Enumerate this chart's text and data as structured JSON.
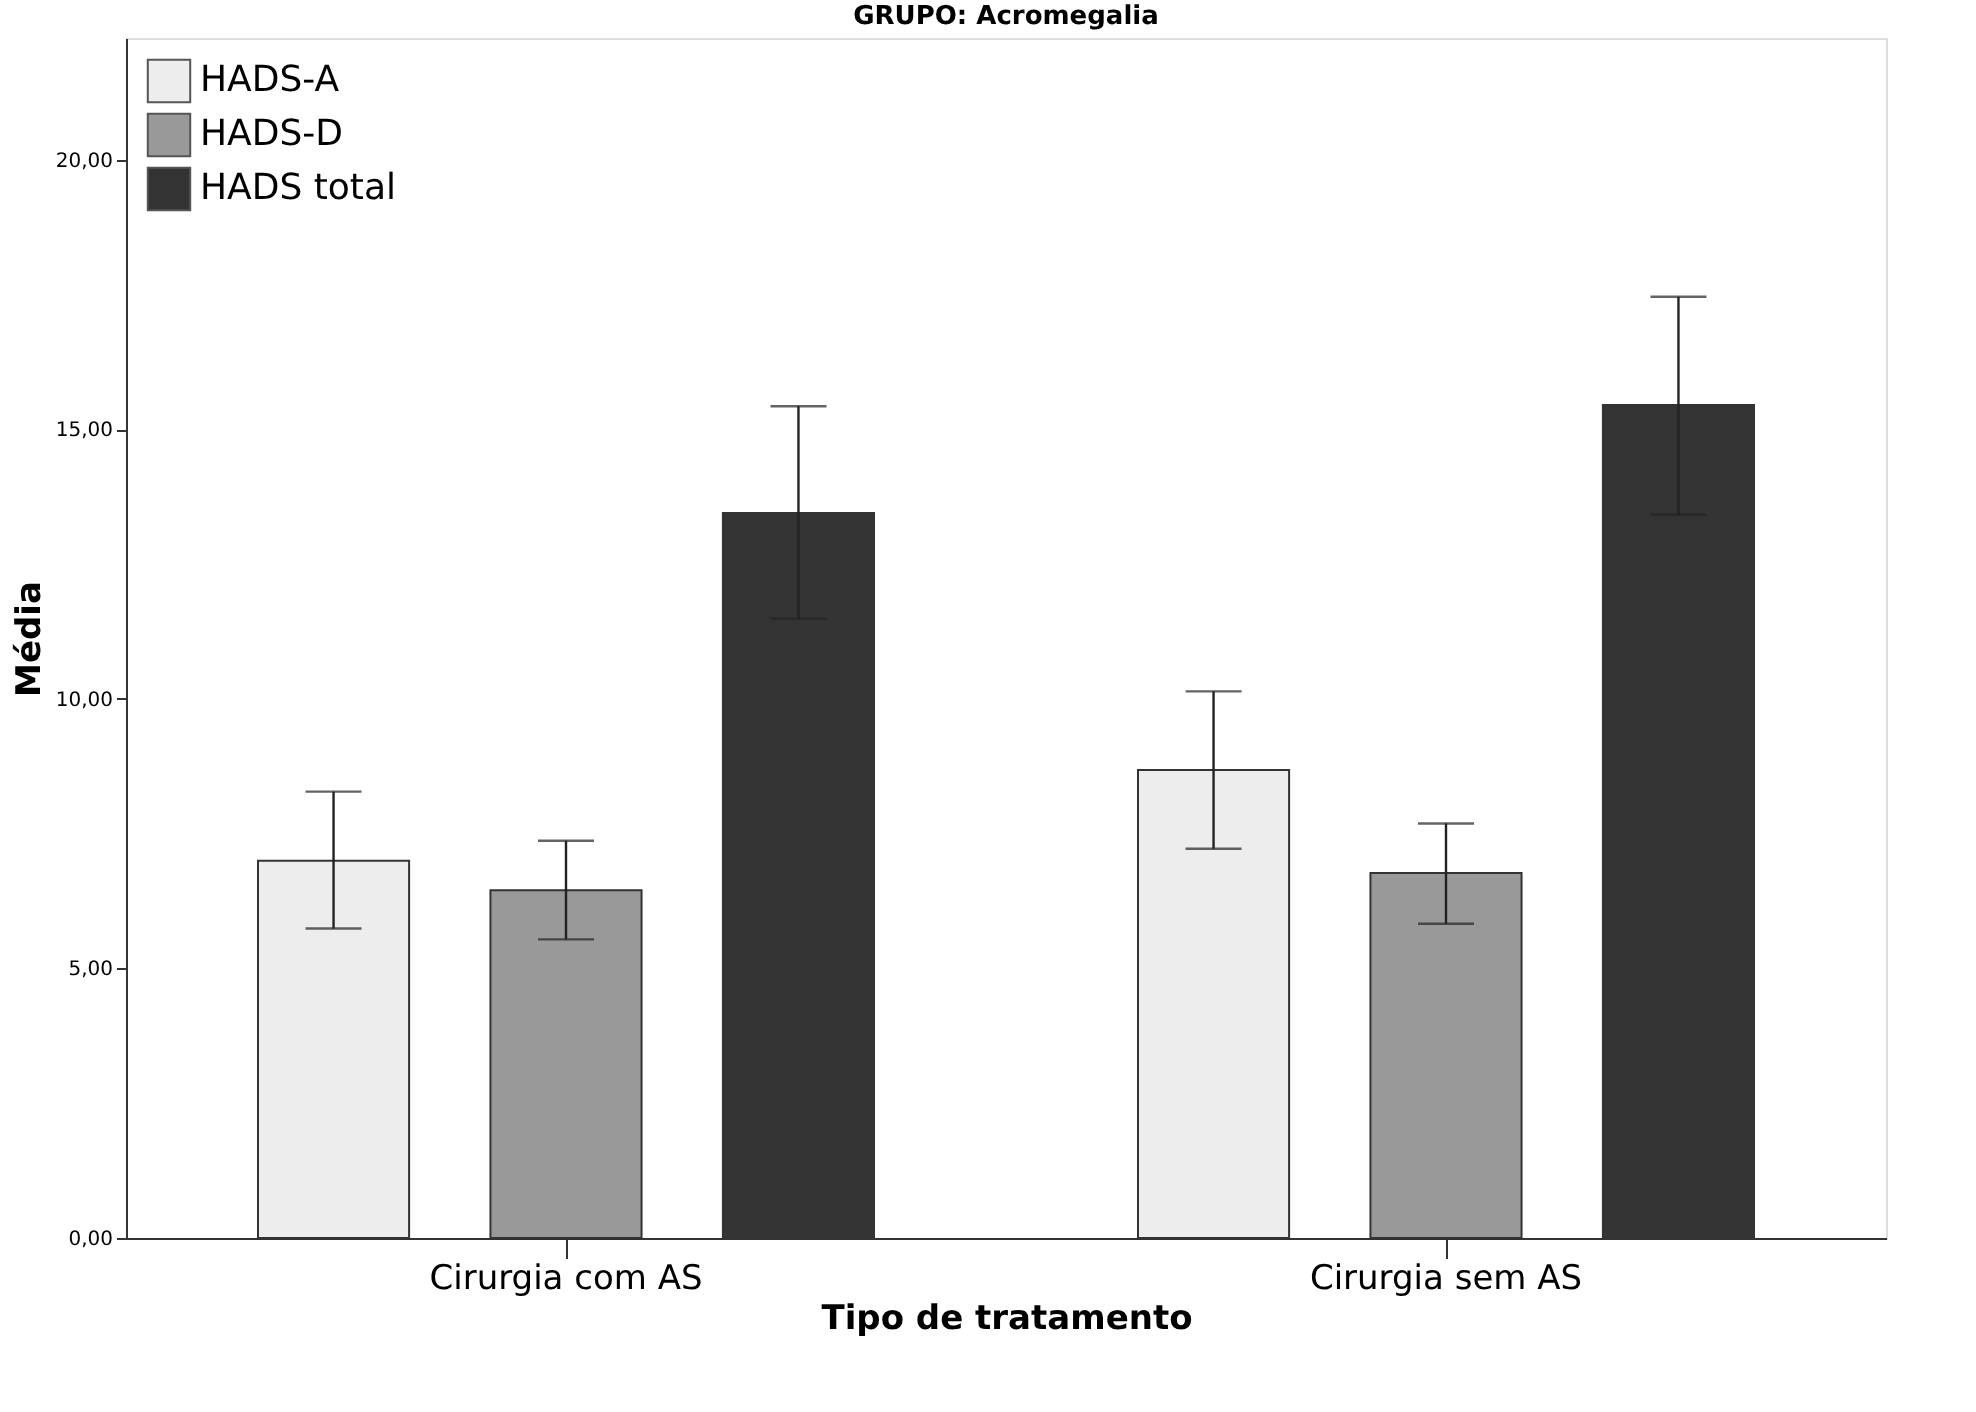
{
  "chart_data": {
    "type": "bar",
    "title": "GRUPO: Acromegalia",
    "xlabel": "Tipo de tratamento",
    "ylabel": "Média",
    "categories": [
      "Cirurgia com AS",
      "Cirurgia sem AS"
    ],
    "series": [
      {
        "name": "HADS-A",
        "color": "#ededed",
        "values": [
          7.0,
          8.68
        ],
        "errors": [
          [
            5.74,
            8.28
          ],
          [
            7.22,
            10.14
          ]
        ]
      },
      {
        "name": "HADS-D",
        "color": "#999999",
        "values": [
          6.45,
          6.77
        ],
        "errors": [
          [
            5.54,
            7.37
          ],
          [
            5.83,
            7.69
          ]
        ]
      },
      {
        "name": "HADS total",
        "color": "#333333",
        "values": [
          13.45,
          15.45
        ],
        "errors": [
          [
            11.49,
            15.43
          ],
          [
            13.42,
            17.46
          ]
        ]
      }
    ],
    "ylim": [
      0,
      22.26
    ],
    "yticks": [
      {
        "value": 0,
        "label": "0,00"
      },
      {
        "value": 5,
        "label": "5,00"
      },
      {
        "value": 10,
        "label": "10,00"
      },
      {
        "value": 15,
        "label": "15,00"
      },
      {
        "value": 20,
        "label": "20,00"
      }
    ],
    "grid": false,
    "legend": "top left"
  }
}
